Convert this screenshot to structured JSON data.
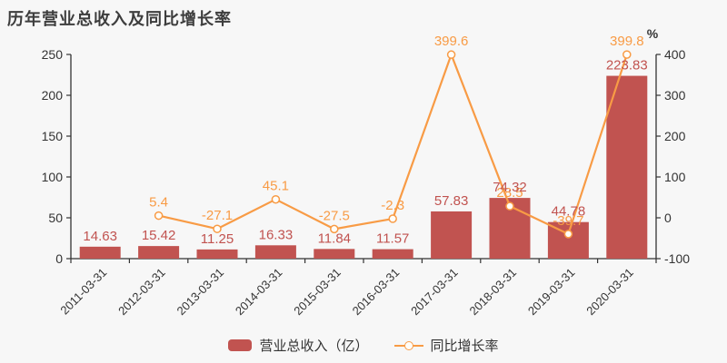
{
  "title": "历年营业总收入及同比增长率",
  "colors": {
    "background": "#f7f7f7",
    "axis": "#333333",
    "bar": "#c15350",
    "line": "#f89b45",
    "marker_fill": "#fffdf8",
    "title": "#3d3d3d"
  },
  "chart_data": {
    "type": "combo",
    "categories": [
      "2011-03-31",
      "2012-03-31",
      "2013-03-31",
      "2014-03-31",
      "2015-03-31",
      "2016-03-31",
      "2017-03-31",
      "2018-03-31",
      "2019-03-31",
      "2020-03-31"
    ],
    "series": [
      {
        "name": "营业总收入（亿）",
        "type": "bar",
        "axis": "left",
        "color": "#c15350",
        "values": [
          14.63,
          15.42,
          11.25,
          16.33,
          11.84,
          11.57,
          57.83,
          74.32,
          44.78,
          223.83
        ]
      },
      {
        "name": "同比增长率",
        "type": "line",
        "axis": "right",
        "color": "#f89b45",
        "values": [
          null,
          5.4,
          -27.1,
          45.1,
          -27.5,
          -2.3,
          399.6,
          28.5,
          -39.7,
          399.8
        ]
      }
    ],
    "y_left": {
      "min": 0,
      "max": 250,
      "ticks": [
        0,
        50,
        100,
        150,
        200,
        250
      ]
    },
    "y_right": {
      "min": -100,
      "max": 400,
      "ticks": [
        -100,
        0,
        100,
        200,
        300,
        400
      ],
      "unit": "%"
    },
    "legend_position": "bottom",
    "grid": false,
    "x_label_rotation": -45
  }
}
